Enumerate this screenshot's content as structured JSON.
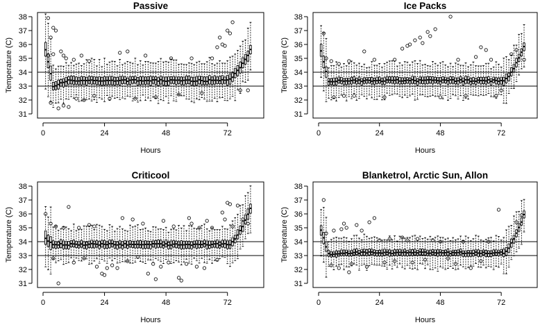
{
  "chart_data": [
    {
      "type": "boxplot",
      "title": "Passive",
      "xlabel": "Hours",
      "ylabel": "Temperature (C)",
      "xlim": [
        0,
        84
      ],
      "ylim": [
        31,
        38
      ],
      "xticks": [
        0,
        24,
        48,
        72
      ],
      "yticks": [
        31,
        32,
        33,
        34,
        35,
        36,
        37,
        38
      ],
      "reference_lines": [
        33,
        34
      ],
      "profile": {
        "start": 35.6,
        "dip": 33.0,
        "plateau": 33.4,
        "rise_start_hour": 72,
        "end": 35.6,
        "iqr": 0.55,
        "whisker": 1.1
      },
      "outliers": [
        [
          2,
          37.9
        ],
        [
          2,
          35.2
        ],
        [
          3,
          36.5
        ],
        [
          3,
          31.8
        ],
        [
          4,
          37.2
        ],
        [
          4,
          35.3
        ],
        [
          5,
          37.0
        ],
        [
          6,
          31.4
        ],
        [
          7,
          35.5
        ],
        [
          8,
          35.2
        ],
        [
          8,
          31.6
        ],
        [
          9,
          35.0
        ],
        [
          10,
          31.5
        ],
        [
          12,
          34.9
        ],
        [
          13,
          32.1
        ],
        [
          15,
          35.2
        ],
        [
          16,
          32.0
        ],
        [
          18,
          34.8
        ],
        [
          20,
          32.3
        ],
        [
          26,
          32.1
        ],
        [
          30,
          35.4
        ],
        [
          33,
          35.5
        ],
        [
          36,
          32.1
        ],
        [
          40,
          35.2
        ],
        [
          44,
          32.2
        ],
        [
          50,
          35.0
        ],
        [
          53,
          32.4
        ],
        [
          58,
          35.0
        ],
        [
          62,
          32.5
        ],
        [
          66,
          35.0
        ],
        [
          68,
          35.8
        ],
        [
          69,
          36.5
        ],
        [
          70,
          36.0
        ],
        [
          71,
          35.9
        ],
        [
          72,
          37.0
        ],
        [
          73,
          36.8
        ],
        [
          74,
          37.6
        ],
        [
          77,
          32.7
        ],
        [
          80,
          32.7
        ]
      ]
    },
    {
      "type": "boxplot",
      "title": "Ice Packs",
      "xlabel": "Hours",
      "ylabel": "Temperature (C)",
      "xlim": [
        0,
        84
      ],
      "ylim": [
        31,
        38
      ],
      "xticks": [
        0,
        24,
        48,
        72
      ],
      "yticks": [
        31,
        32,
        33,
        34,
        35,
        36,
        37,
        38
      ],
      "reference_lines": [
        33,
        34
      ],
      "profile": {
        "start": 35.5,
        "dip": 33.3,
        "plateau": 33.4,
        "rise_start_hour": 73,
        "end": 35.8,
        "iqr": 0.45,
        "whisker": 1.0
      },
      "outliers": [
        [
          2,
          36.8
        ],
        [
          3,
          35.0
        ],
        [
          5,
          34.8
        ],
        [
          6,
          32.2
        ],
        [
          8,
          34.6
        ],
        [
          10,
          32.3
        ],
        [
          12,
          34.8
        ],
        [
          14,
          32.3
        ],
        [
          18,
          35.5
        ],
        [
          22,
          34.9
        ],
        [
          26,
          32.2
        ],
        [
          30,
          34.9
        ],
        [
          33,
          35.7
        ],
        [
          35,
          35.9
        ],
        [
          36,
          36.0
        ],
        [
          38,
          36.3
        ],
        [
          40,
          36.5
        ],
        [
          41,
          36.1
        ],
        [
          43,
          36.9
        ],
        [
          44,
          36.6
        ],
        [
          46,
          37.1
        ],
        [
          48,
          32.2
        ],
        [
          52,
          38.0
        ],
        [
          55,
          34.9
        ],
        [
          58,
          32.3
        ],
        [
          62,
          35.1
        ],
        [
          64,
          35.8
        ],
        [
          66,
          35.6
        ],
        [
          68,
          34.9
        ],
        [
          70,
          32.3
        ],
        [
          72,
          32.7
        ],
        [
          76,
          35.3
        ],
        [
          78,
          35.6
        ],
        [
          81,
          34.9
        ]
      ]
    },
    {
      "type": "boxplot",
      "title": "Criticool",
      "xlabel": "Hours",
      "ylabel": "Temperature (C)",
      "xlim": [
        0,
        84
      ],
      "ylim": [
        31,
        38
      ],
      "xticks": [
        0,
        24,
        48,
        72
      ],
      "yticks": [
        31,
        32,
        33,
        34,
        35,
        36,
        37,
        38
      ],
      "reference_lines": [
        33,
        34
      ],
      "profile": {
        "start": 34.2,
        "dip": 33.8,
        "plateau": 33.8,
        "rise_start_hour": 73,
        "end": 36.4,
        "iqr": 0.5,
        "whisker": 1.0
      },
      "outliers": [
        [
          1,
          36.0
        ],
        [
          3,
          35.3
        ],
        [
          4,
          32.8
        ],
        [
          5,
          35.1
        ],
        [
          6,
          31.0
        ],
        [
          8,
          35.0
        ],
        [
          10,
          36.5
        ],
        [
          12,
          32.5
        ],
        [
          14,
          35.0
        ],
        [
          16,
          32.8
        ],
        [
          18,
          35.2
        ],
        [
          20,
          35.1
        ],
        [
          21,
          32.2
        ],
        [
          23,
          31.7
        ],
        [
          24,
          31.6
        ],
        [
          25,
          32.1
        ],
        [
          27,
          32.3
        ],
        [
          29,
          32.1
        ],
        [
          31,
          35.7
        ],
        [
          33,
          32.6
        ],
        [
          35,
          35.6
        ],
        [
          37,
          32.9
        ],
        [
          39,
          35.3
        ],
        [
          41,
          31.7
        ],
        [
          43,
          32.4
        ],
        [
          44,
          31.3
        ],
        [
          46,
          32.2
        ],
        [
          47,
          35.5
        ],
        [
          49,
          32.5
        ],
        [
          51,
          35.1
        ],
        [
          53,
          31.4
        ],
        [
          54,
          31.2
        ],
        [
          56,
          32.4
        ],
        [
          57,
          35.7
        ],
        [
          58,
          35.3
        ],
        [
          60,
          32.2
        ],
        [
          61,
          35.0
        ],
        [
          63,
          32.1
        ],
        [
          64,
          35.5
        ],
        [
          66,
          35.0
        ],
        [
          68,
          32.7
        ],
        [
          70,
          36.1
        ],
        [
          71,
          35.6
        ],
        [
          72,
          36.8
        ],
        [
          73,
          36.7
        ],
        [
          74,
          35.1
        ],
        [
          76,
          36.6
        ],
        [
          78,
          35.6
        ],
        [
          80,
          35.3
        ]
      ]
    },
    {
      "type": "boxplot",
      "title": "Blanketrol, Arctic Sun, Allon",
      "xlabel": "Hours",
      "ylabel": "Temperature (C)",
      "xlim": [
        0,
        84
      ],
      "ylim": [
        31,
        38
      ],
      "xticks": [
        0,
        24,
        48,
        72
      ],
      "yticks": [
        31,
        32,
        33,
        34,
        35,
        36,
        37,
        38
      ],
      "reference_lines": [
        33,
        34
      ],
      "profile": {
        "start": 34.8,
        "dip": 33.1,
        "plateau": 33.2,
        "rise_start_hour": 73,
        "end": 35.9,
        "iqr": 0.4,
        "whisker": 0.9
      },
      "outliers": [
        [
          2,
          37.0
        ],
        [
          3,
          34.6
        ],
        [
          5,
          32.3
        ],
        [
          6,
          34.8
        ],
        [
          8,
          32.1
        ],
        [
          9,
          34.9
        ],
        [
          10,
          35.3
        ],
        [
          11,
          35.0
        ],
        [
          12,
          31.8
        ],
        [
          13,
          32.4
        ],
        [
          15,
          35.2
        ],
        [
          17,
          34.8
        ],
        [
          19,
          32.2
        ],
        [
          20,
          35.4
        ],
        [
          22,
          35.7
        ],
        [
          24,
          34.1
        ],
        [
          26,
          32.5
        ],
        [
          28,
          34.2
        ],
        [
          30,
          32.6
        ],
        [
          33,
          34.3
        ],
        [
          35,
          34.1
        ],
        [
          37,
          32.5
        ],
        [
          39,
          34.2
        ],
        [
          42,
          32.7
        ],
        [
          45,
          34.1
        ],
        [
          48,
          34.0
        ],
        [
          51,
          32.8
        ],
        [
          54,
          32.4
        ],
        [
          57,
          34.0
        ],
        [
          60,
          32.1
        ],
        [
          64,
          32.6
        ],
        [
          67,
          34.0
        ],
        [
          71,
          36.3
        ],
        [
          78,
          35.4
        ],
        [
          80,
          35.9
        ]
      ]
    }
  ]
}
